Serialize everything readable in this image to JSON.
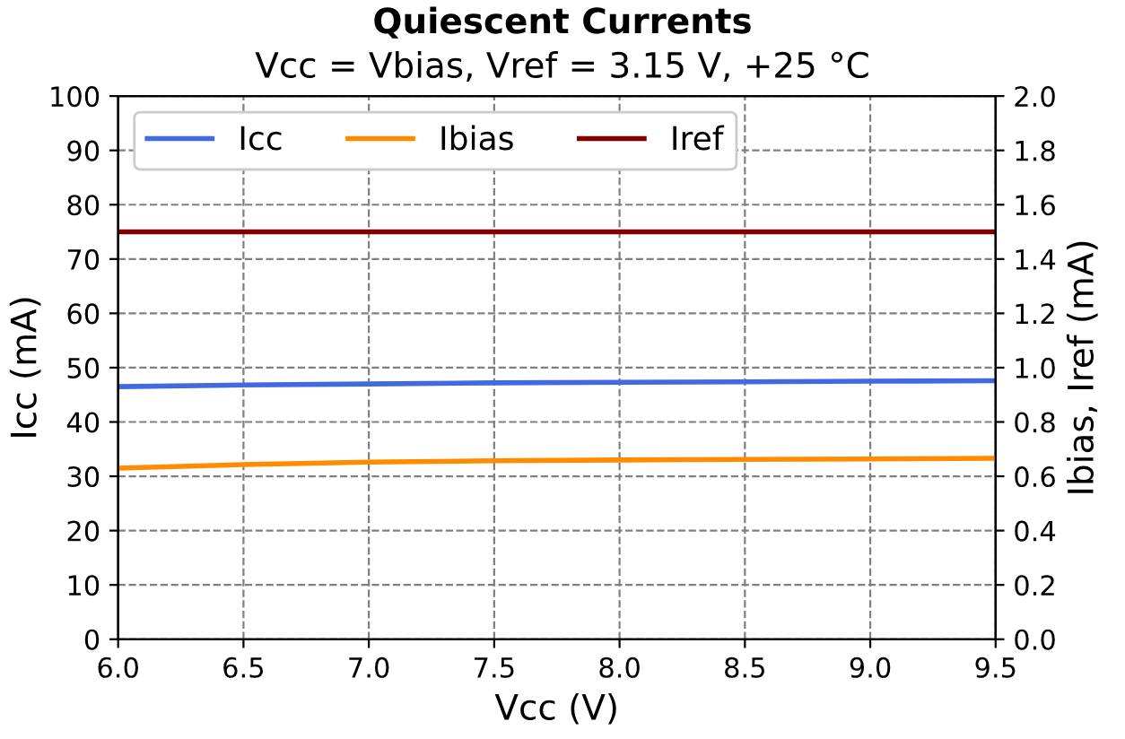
{
  "chart_data": {
    "type": "line",
    "title": "Quiescent Currents",
    "subtitle": "Vcc = Vbias, Vref = 3.15 V, +25 °C",
    "xlabel": "Vcc (V)",
    "ylabel": "Icc (mA)",
    "y2label": "Ibias, Iref (mA)",
    "x": [
      6.0,
      6.5,
      7.0,
      7.5,
      8.0,
      8.5,
      9.0,
      9.5
    ],
    "series": [
      {
        "name": "Icc",
        "color": "#4169e1",
        "values": [
          46.5,
          46.8,
          47.0,
          47.2,
          47.3,
          47.4,
          47.5,
          47.6
        ]
      },
      {
        "name": "Ibias",
        "color": "#ff8c00",
        "axis": "y2",
        "values": [
          0.63,
          0.643,
          0.652,
          0.657,
          0.66,
          0.662,
          0.664,
          0.666
        ]
      },
      {
        "name": "Iref",
        "color": "#800000",
        "axis": "y2",
        "values": [
          1.5,
          1.5,
          1.5,
          1.5,
          1.5,
          1.5,
          1.5,
          1.5
        ]
      }
    ],
    "xlim": [
      6.0,
      9.5
    ],
    "xticks": [
      {
        "value": 6.0,
        "label": "6.0"
      },
      {
        "value": 6.5,
        "label": "6.5"
      },
      {
        "value": 7.0,
        "label": "7.0"
      },
      {
        "value": 7.5,
        "label": "7.5"
      },
      {
        "value": 8.0,
        "label": "8.0"
      },
      {
        "value": 8.5,
        "label": "8.5"
      },
      {
        "value": 9.0,
        "label": "9.0"
      },
      {
        "value": 9.5,
        "label": "9.5"
      }
    ],
    "ylim": [
      0,
      100
    ],
    "yticks": [
      0,
      10,
      20,
      30,
      40,
      50,
      60,
      70,
      80,
      90,
      100
    ],
    "y2lim": [
      0,
      2.0
    ],
    "y2ticks": [
      {
        "value": 0,
        "label": "0.0"
      },
      0.2,
      0.4,
      0.6,
      0.8,
      {
        "value": 1.0,
        "label": "1.0"
      },
      1.2,
      1.4,
      1.6,
      1.8,
      {
        "value": 2.0,
        "label": "2.0"
      }
    ],
    "grid": true,
    "legend": "top left",
    "marker": "none",
    "line_style": "solid"
  }
}
